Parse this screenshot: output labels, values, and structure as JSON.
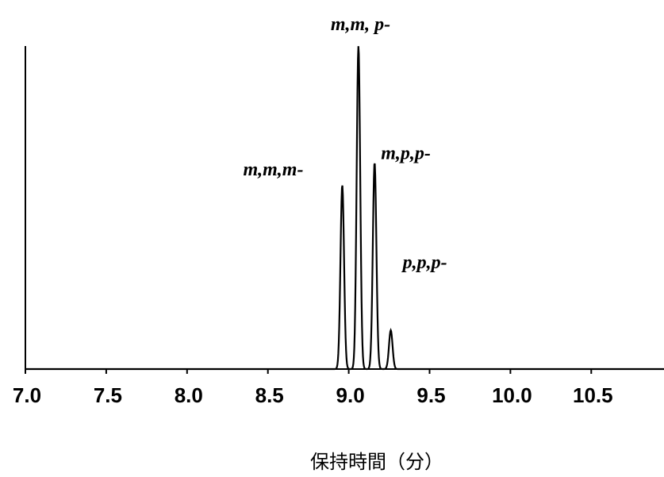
{
  "chart_data": {
    "type": "line",
    "title": "",
    "xlabel": "保持時間（分）",
    "ylabel": "",
    "xlim": [
      7.0,
      10.95
    ],
    "ylim": [
      0,
      100
    ],
    "grid": false,
    "x_ticks": [
      "7.0",
      "7.5",
      "8.0",
      "8.5",
      "9.0",
      "9.5",
      "10.0",
      "10.5"
    ],
    "x_tick_values": [
      7.0,
      7.5,
      8.0,
      8.5,
      9.0,
      9.5,
      10.0,
      10.5
    ],
    "peaks": [
      {
        "label": "m,m,m-",
        "x": 8.96,
        "y": 57
      },
      {
        "label": "m,m, p-",
        "x": 9.06,
        "y": 100
      },
      {
        "label": "m,p,p-",
        "x": 9.16,
        "y": 64
      },
      {
        "label": "p,p,p-",
        "x": 9.26,
        "y": 12
      }
    ]
  }
}
